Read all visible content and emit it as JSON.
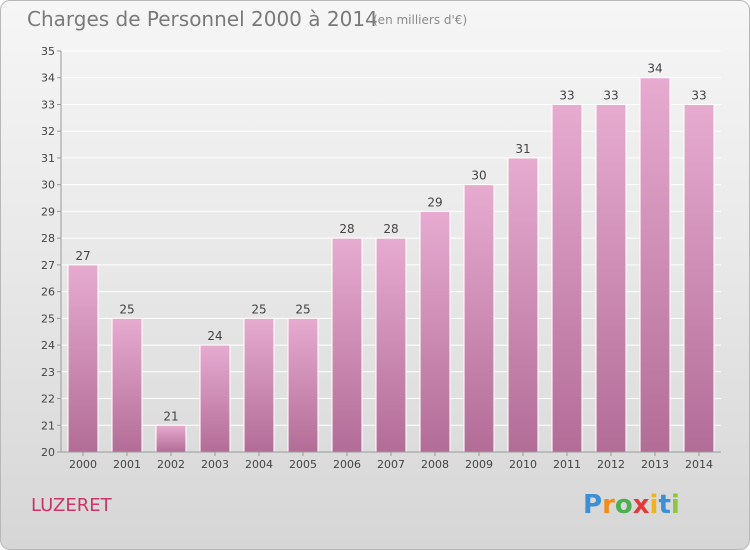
{
  "header": {
    "title": "Charges de Personnel 2000 à 2014",
    "subtitle": "(en milliers d'€)"
  },
  "footer": {
    "place": "LUZERET",
    "brand_letters": [
      "P",
      "r",
      "o",
      "x",
      "i",
      "t",
      "i"
    ],
    "brand_colors": [
      "#3a8fd8",
      "#f28c1a",
      "#4caf50",
      "#e23a3a",
      "#f2b21a",
      "#3a8fd8",
      "#8cc63f"
    ]
  },
  "colors": {
    "bar_light": "#e7abd0",
    "bar_dark": "#b26d97",
    "grid": "#ffffff",
    "axis": "#9a9a9a"
  },
  "chart_data": {
    "type": "bar",
    "categories": [
      "2000",
      "2001",
      "2002",
      "2003",
      "2004",
      "2005",
      "2006",
      "2007",
      "2008",
      "2009",
      "2010",
      "2011",
      "2012",
      "2013",
      "2014"
    ],
    "values": [
      27,
      25,
      21,
      24,
      25,
      25,
      28,
      28,
      29,
      30,
      31,
      33,
      33,
      34,
      33
    ],
    "title": "Charges de Personnel 2000 à 2014",
    "xlabel": "",
    "ylabel": "",
    "ylim": [
      20,
      35
    ],
    "yticks": [
      20,
      21,
      22,
      23,
      24,
      25,
      26,
      27,
      28,
      29,
      30,
      31,
      32,
      33,
      34,
      35
    ],
    "grid": true
  }
}
